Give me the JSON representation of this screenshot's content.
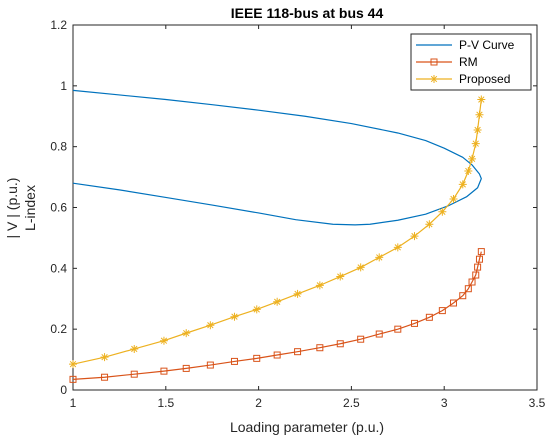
{
  "chart_data": {
    "type": "line",
    "title": "IEEE 118-bus at bus 44",
    "xlabel": "Loading parameter (p.u.)",
    "ylabel_lines": [
      "| V | (p.u.)",
      "L-index"
    ],
    "xlim": [
      1,
      3.5
    ],
    "ylim": [
      0,
      1.2
    ],
    "xticks": [
      1,
      1.5,
      2,
      2.5,
      3,
      3.5
    ],
    "xtick_labels": [
      "1",
      "1.5",
      "2",
      "2.5",
      "3",
      "3.5"
    ],
    "yticks": [
      0,
      0.2,
      0.4,
      0.6,
      0.8,
      1.0,
      1.2
    ],
    "ytick_labels": [
      "0",
      "0.2",
      "0.4",
      "0.6",
      "0.8",
      "1",
      "1.2"
    ],
    "grid": false,
    "legend_position": "top-right",
    "series": [
      {
        "name": "P-V Curve",
        "color": "#0072BD",
        "marker": "none",
        "x": [
          1.0,
          1.25,
          1.5,
          1.75,
          2.0,
          2.25,
          2.5,
          2.75,
          2.9,
          3.0,
          3.1,
          3.15,
          3.19,
          3.2,
          3.18,
          3.12,
          3.02,
          2.9,
          2.75,
          2.6,
          2.52,
          2.4,
          2.2,
          2.0,
          1.75,
          1.5,
          1.25,
          1.0
        ],
        "y": [
          0.985,
          0.97,
          0.955,
          0.938,
          0.92,
          0.9,
          0.876,
          0.845,
          0.82,
          0.795,
          0.765,
          0.74,
          0.71,
          0.695,
          0.665,
          0.635,
          0.605,
          0.578,
          0.558,
          0.545,
          0.543,
          0.545,
          0.56,
          0.582,
          0.608,
          0.633,
          0.658,
          0.68
        ]
      },
      {
        "name": "RM",
        "color": "#D95319",
        "marker": "square",
        "x": [
          1.0,
          1.17,
          1.33,
          1.49,
          1.61,
          1.74,
          1.87,
          1.99,
          2.1,
          2.21,
          2.33,
          2.44,
          2.55,
          2.65,
          2.75,
          2.84,
          2.92,
          2.99,
          3.05,
          3.1,
          3.13,
          3.15,
          3.17,
          3.18,
          3.19,
          3.2
        ],
        "y": [
          0.035,
          0.042,
          0.052,
          0.062,
          0.071,
          0.082,
          0.094,
          0.104,
          0.115,
          0.126,
          0.139,
          0.152,
          0.167,
          0.184,
          0.2,
          0.219,
          0.239,
          0.261,
          0.286,
          0.31,
          0.333,
          0.355,
          0.378,
          0.404,
          0.43,
          0.455
        ]
      },
      {
        "name": "Proposed",
        "color": "#EDB120",
        "marker": "asterisk",
        "x": [
          1.0,
          1.17,
          1.33,
          1.49,
          1.61,
          1.74,
          1.87,
          1.99,
          2.1,
          2.21,
          2.33,
          2.44,
          2.55,
          2.65,
          2.75,
          2.84,
          2.92,
          2.99,
          3.05,
          3.1,
          3.13,
          3.15,
          3.17,
          3.18,
          3.19,
          3.2
        ],
        "y": [
          0.085,
          0.108,
          0.135,
          0.162,
          0.187,
          0.213,
          0.241,
          0.265,
          0.29,
          0.316,
          0.344,
          0.373,
          0.403,
          0.436,
          0.469,
          0.506,
          0.545,
          0.586,
          0.628,
          0.676,
          0.72,
          0.76,
          0.81,
          0.855,
          0.905,
          0.955
        ]
      }
    ]
  }
}
